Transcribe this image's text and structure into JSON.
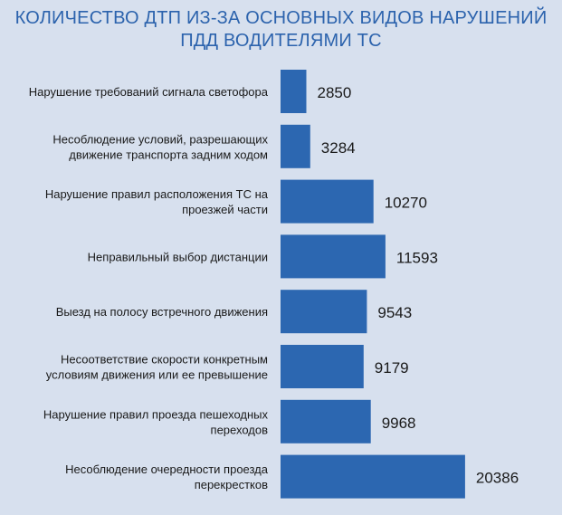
{
  "chart_data": {
    "type": "bar",
    "orientation": "horizontal",
    "title_lines": [
      "КОЛИЧЕСТВО ДТП ИЗ-ЗА ОСНОВНЫХ ВИДОВ НАРУШЕНИЙ",
      "ПДД ВОДИТЕЛЯМИ ТС"
    ],
    "categories": [
      [
        "Нарушение требований сигнала светофора"
      ],
      [
        "Несоблюдение условий, разрешающих",
        "движение транспорта задним ходом"
      ],
      [
        "Нарушение правил расположения ТС на",
        "проезжей части"
      ],
      [
        "Неправильный выбор дистанции"
      ],
      [
        "Выезд на полосу встречного движения"
      ],
      [
        "Несоответствие скорости конкретным",
        "условиям движения или ее превышение"
      ],
      [
        "Нарушение правил проезда пешеходных",
        "переходов"
      ],
      [
        "Несоблюдение очередности проезда",
        "перекрестков"
      ]
    ],
    "values": [
      2850,
      3284,
      10270,
      11593,
      9543,
      9179,
      9968,
      20386
    ],
    "xlim": [
      0,
      24000
    ],
    "grid": false,
    "legend": "none",
    "bar_color": "#2c67b1",
    "label_color": "#1a1a1a",
    "title_color": "#2c63ad",
    "background_color": "#d7e0ee"
  }
}
